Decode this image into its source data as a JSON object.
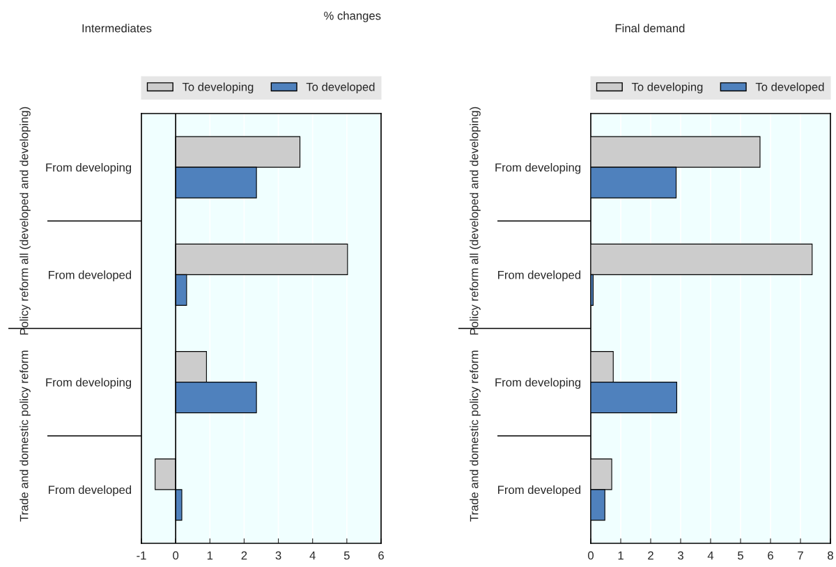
{
  "chart_data": [
    {
      "type": "bar",
      "orientation": "horizontal",
      "subtitle": "% changes",
      "title": "Intermediates",
      "categories": [
        "From developing",
        "From developed",
        "From developing",
        "From developed"
      ],
      "annotations": [
        "Policy reform all (developed and developing)",
        "Trade and domestic policy reform"
      ],
      "series": [
        {
          "name": "To developing",
          "color": "#cccccc",
          "values": [
            3.63,
            5.02,
            0.9,
            -0.6
          ]
        },
        {
          "name": "To developed",
          "color": "#4f81bd",
          "values": [
            2.36,
            0.32,
            2.36,
            0.18
          ]
        }
      ],
      "xlim": [
        -1,
        6
      ],
      "xticks": [
        -1,
        0,
        1,
        2,
        3,
        4,
        5,
        6
      ],
      "grid": "x",
      "legend": "top"
    },
    {
      "type": "bar",
      "orientation": "horizontal",
      "title": "Final demand",
      "categories": [
        "From developing",
        "From developed",
        "From developing",
        "From developed"
      ],
      "annotations": [
        "Policy reform all (developed and developing)",
        "Trade and domestic policy reform"
      ],
      "series": [
        {
          "name": "To developing",
          "color": "#cccccc",
          "values": [
            5.65,
            7.39,
            0.75,
            0.7
          ]
        },
        {
          "name": "To developed",
          "color": "#4f81bd",
          "values": [
            2.85,
            0.08,
            2.87,
            0.47
          ]
        }
      ],
      "xlim": [
        0,
        8
      ],
      "xticks": [
        0,
        1,
        2,
        3,
        4,
        5,
        6,
        7,
        8
      ],
      "grid": "x",
      "legend": "top"
    }
  ]
}
